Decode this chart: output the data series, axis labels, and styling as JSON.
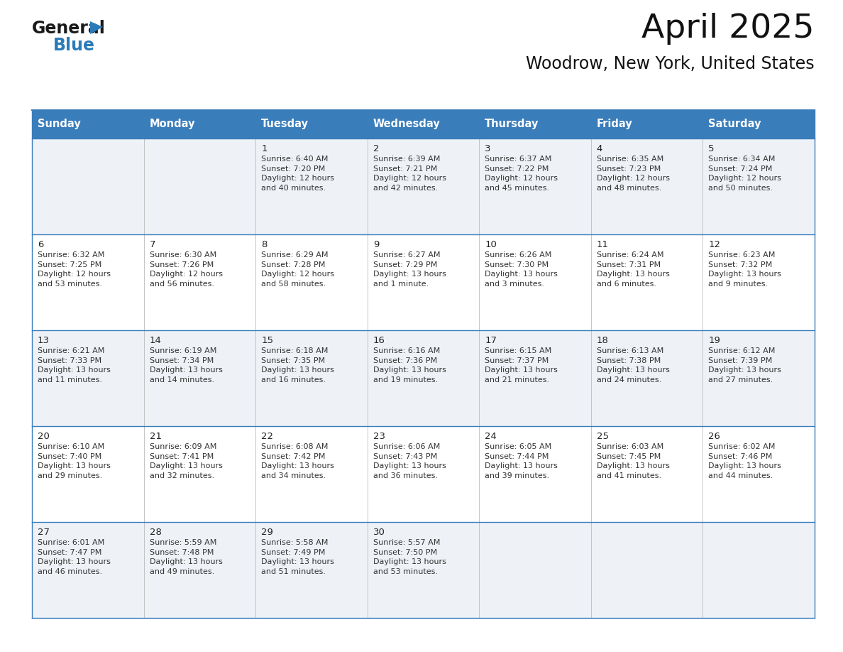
{
  "title": "April 2025",
  "subtitle": "Woodrow, New York, United States",
  "header_bg_color": "#3A7DBB",
  "header_text_color": "#FFFFFF",
  "header_font_size": 10.5,
  "day_names": [
    "Sunday",
    "Monday",
    "Tuesday",
    "Wednesday",
    "Thursday",
    "Friday",
    "Saturday"
  ],
  "title_font_size": 34,
  "subtitle_font_size": 17,
  "bg_color": "#FFFFFF",
  "row_colors": [
    "#EEF2F7",
    "#FFFFFF"
  ],
  "grid_line_color": "#3A7DBB",
  "date_font_size": 9.5,
  "info_font_size": 8.0,
  "date_color": "#222222",
  "info_color": "#333333",
  "logo_general_color": "#1a1a1a",
  "logo_blue_color": "#2B7BB9",
  "logo_triangle_color": "#2B7BB9",
  "calendar": [
    [
      {
        "day": "",
        "info": ""
      },
      {
        "day": "",
        "info": ""
      },
      {
        "day": "1",
        "info": "Sunrise: 6:40 AM\nSunset: 7:20 PM\nDaylight: 12 hours\nand 40 minutes."
      },
      {
        "day": "2",
        "info": "Sunrise: 6:39 AM\nSunset: 7:21 PM\nDaylight: 12 hours\nand 42 minutes."
      },
      {
        "day": "3",
        "info": "Sunrise: 6:37 AM\nSunset: 7:22 PM\nDaylight: 12 hours\nand 45 minutes."
      },
      {
        "day": "4",
        "info": "Sunrise: 6:35 AM\nSunset: 7:23 PM\nDaylight: 12 hours\nand 48 minutes."
      },
      {
        "day": "5",
        "info": "Sunrise: 6:34 AM\nSunset: 7:24 PM\nDaylight: 12 hours\nand 50 minutes."
      }
    ],
    [
      {
        "day": "6",
        "info": "Sunrise: 6:32 AM\nSunset: 7:25 PM\nDaylight: 12 hours\nand 53 minutes."
      },
      {
        "day": "7",
        "info": "Sunrise: 6:30 AM\nSunset: 7:26 PM\nDaylight: 12 hours\nand 56 minutes."
      },
      {
        "day": "8",
        "info": "Sunrise: 6:29 AM\nSunset: 7:28 PM\nDaylight: 12 hours\nand 58 minutes."
      },
      {
        "day": "9",
        "info": "Sunrise: 6:27 AM\nSunset: 7:29 PM\nDaylight: 13 hours\nand 1 minute."
      },
      {
        "day": "10",
        "info": "Sunrise: 6:26 AM\nSunset: 7:30 PM\nDaylight: 13 hours\nand 3 minutes."
      },
      {
        "day": "11",
        "info": "Sunrise: 6:24 AM\nSunset: 7:31 PM\nDaylight: 13 hours\nand 6 minutes."
      },
      {
        "day": "12",
        "info": "Sunrise: 6:23 AM\nSunset: 7:32 PM\nDaylight: 13 hours\nand 9 minutes."
      }
    ],
    [
      {
        "day": "13",
        "info": "Sunrise: 6:21 AM\nSunset: 7:33 PM\nDaylight: 13 hours\nand 11 minutes."
      },
      {
        "day": "14",
        "info": "Sunrise: 6:19 AM\nSunset: 7:34 PM\nDaylight: 13 hours\nand 14 minutes."
      },
      {
        "day": "15",
        "info": "Sunrise: 6:18 AM\nSunset: 7:35 PM\nDaylight: 13 hours\nand 16 minutes."
      },
      {
        "day": "16",
        "info": "Sunrise: 6:16 AM\nSunset: 7:36 PM\nDaylight: 13 hours\nand 19 minutes."
      },
      {
        "day": "17",
        "info": "Sunrise: 6:15 AM\nSunset: 7:37 PM\nDaylight: 13 hours\nand 21 minutes."
      },
      {
        "day": "18",
        "info": "Sunrise: 6:13 AM\nSunset: 7:38 PM\nDaylight: 13 hours\nand 24 minutes."
      },
      {
        "day": "19",
        "info": "Sunrise: 6:12 AM\nSunset: 7:39 PM\nDaylight: 13 hours\nand 27 minutes."
      }
    ],
    [
      {
        "day": "20",
        "info": "Sunrise: 6:10 AM\nSunset: 7:40 PM\nDaylight: 13 hours\nand 29 minutes."
      },
      {
        "day": "21",
        "info": "Sunrise: 6:09 AM\nSunset: 7:41 PM\nDaylight: 13 hours\nand 32 minutes."
      },
      {
        "day": "22",
        "info": "Sunrise: 6:08 AM\nSunset: 7:42 PM\nDaylight: 13 hours\nand 34 minutes."
      },
      {
        "day": "23",
        "info": "Sunrise: 6:06 AM\nSunset: 7:43 PM\nDaylight: 13 hours\nand 36 minutes."
      },
      {
        "day": "24",
        "info": "Sunrise: 6:05 AM\nSunset: 7:44 PM\nDaylight: 13 hours\nand 39 minutes."
      },
      {
        "day": "25",
        "info": "Sunrise: 6:03 AM\nSunset: 7:45 PM\nDaylight: 13 hours\nand 41 minutes."
      },
      {
        "day": "26",
        "info": "Sunrise: 6:02 AM\nSunset: 7:46 PM\nDaylight: 13 hours\nand 44 minutes."
      }
    ],
    [
      {
        "day": "27",
        "info": "Sunrise: 6:01 AM\nSunset: 7:47 PM\nDaylight: 13 hours\nand 46 minutes."
      },
      {
        "day": "28",
        "info": "Sunrise: 5:59 AM\nSunset: 7:48 PM\nDaylight: 13 hours\nand 49 minutes."
      },
      {
        "day": "29",
        "info": "Sunrise: 5:58 AM\nSunset: 7:49 PM\nDaylight: 13 hours\nand 51 minutes."
      },
      {
        "day": "30",
        "info": "Sunrise: 5:57 AM\nSunset: 7:50 PM\nDaylight: 13 hours\nand 53 minutes."
      },
      {
        "day": "",
        "info": ""
      },
      {
        "day": "",
        "info": ""
      },
      {
        "day": "",
        "info": ""
      }
    ]
  ]
}
